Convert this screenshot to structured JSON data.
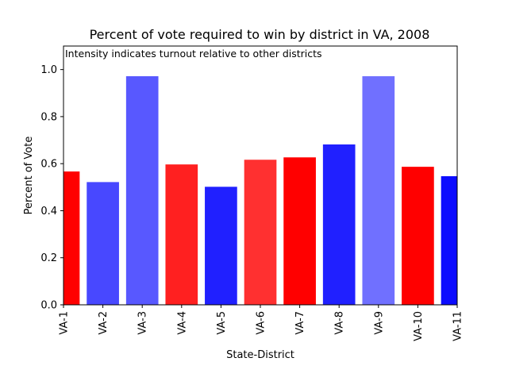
{
  "chart_data": {
    "type": "bar",
    "title": "Percent of vote required to win by district in VA, 2008",
    "annotation": "Intensity indicates turnout relative to other districts",
    "xlabel": "State-District",
    "ylabel": "Percent of Vote",
    "ylim": [
      0,
      1.1
    ],
    "yticks": [
      0.0,
      0.2,
      0.4,
      0.6,
      0.8,
      1.0
    ],
    "ytick_labels": [
      "0.0",
      "0.2",
      "0.4",
      "0.6",
      "0.8",
      "1.0"
    ],
    "xlim": [
      0,
      10
    ],
    "categories": [
      "VA-1",
      "VA-2",
      "VA-3",
      "VA-4",
      "VA-5",
      "VA-6",
      "VA-7",
      "VA-8",
      "VA-9",
      "VA-10",
      "VA-11"
    ],
    "values": [
      0.565,
      0.52,
      0.97,
      0.595,
      0.5,
      0.615,
      0.625,
      0.68,
      0.97,
      0.585,
      0.545
    ],
    "colors": [
      "#ff0000",
      "#4848ff",
      "#5858ff",
      "#ff2020",
      "#2020ff",
      "#ff3030",
      "#ff0000",
      "#2020ff",
      "#7070ff",
      "#ff0000",
      "#0c0cff"
    ],
    "grid": false,
    "legend": "none"
  }
}
